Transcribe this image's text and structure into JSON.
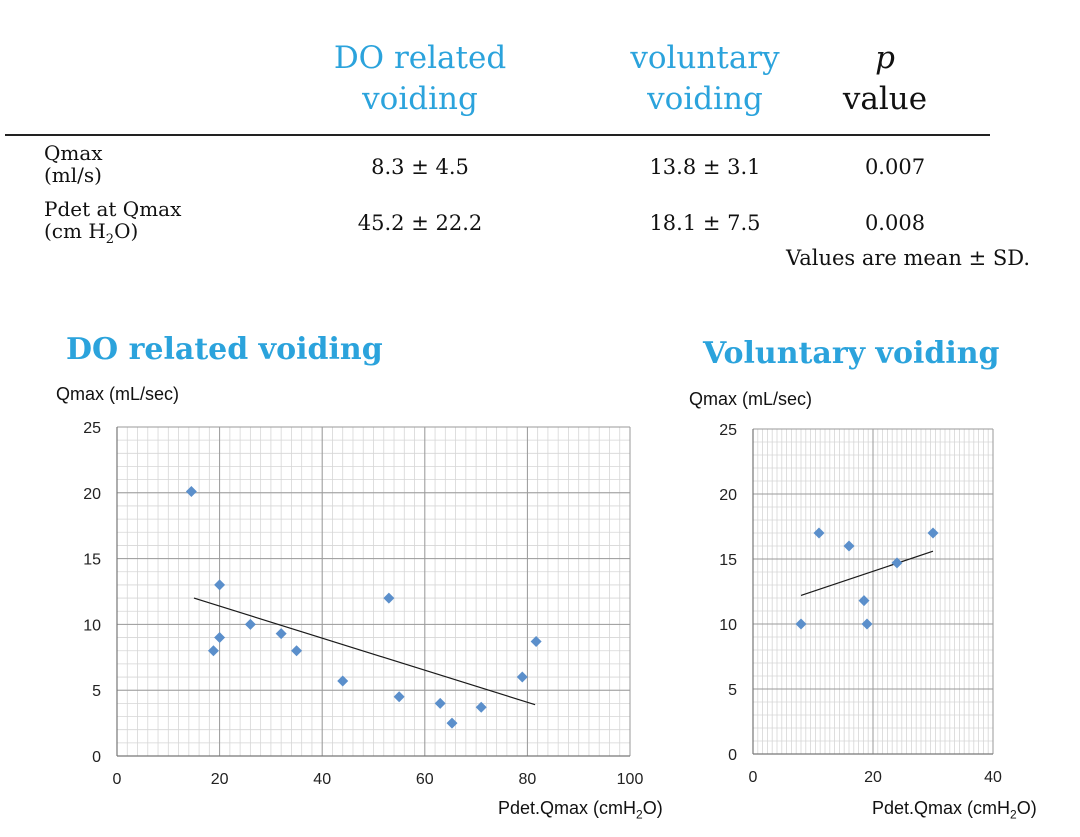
{
  "table": {
    "headers": {
      "do": [
        "DO related",
        "voiding"
      ],
      "vol": [
        "voluntary",
        "voiding"
      ],
      "p": [
        "p",
        "value"
      ]
    },
    "rows": [
      {
        "label": [
          "Qmax",
          "(ml/s)"
        ],
        "do": "8.3 ± 4.5",
        "vol": "13.8 ± 3.1",
        "p": "0.007"
      },
      {
        "label": [
          "Pdet at Qmax",
          "(cm H",
          "2",
          "O)"
        ],
        "do": "45.2 ± 22.2",
        "vol": "18.1 ± 7.5",
        "p": "0.008"
      }
    ],
    "footnote": "Values are mean ± SD."
  },
  "chart_data": [
    {
      "type": "scatter",
      "title": "DO related voiding",
      "ylabel": "Qmax (mL/sec)",
      "xlabel": [
        "Pdet.Qmax (cmH",
        "2",
        "O)"
      ],
      "xlim": [
        0,
        100
      ],
      "ylim": [
        0,
        25
      ],
      "xticks": [
        0,
        20,
        40,
        60,
        80,
        100
      ],
      "yticks": [
        0,
        5,
        10,
        15,
        20,
        25
      ],
      "grid": true,
      "marker_color": "#5B8FCB",
      "points": [
        [
          14.5,
          20.1
        ],
        [
          18.8,
          8.0
        ],
        [
          20,
          13.0
        ],
        [
          20,
          9.0
        ],
        [
          26,
          10.0
        ],
        [
          32,
          9.3
        ],
        [
          35,
          8.0
        ],
        [
          44,
          5.7
        ],
        [
          53,
          12.0
        ],
        [
          55,
          4.5
        ],
        [
          63,
          4.0
        ],
        [
          65.3,
          2.5
        ],
        [
          71,
          3.7
        ],
        [
          79,
          6.0
        ],
        [
          81.7,
          8.7
        ]
      ],
      "trendline": {
        "x": [
          15,
          81.5
        ],
        "y": [
          12.0,
          3.9
        ]
      }
    },
    {
      "type": "scatter",
      "title": "Voluntary voiding",
      "ylabel": "Qmax (mL/sec)",
      "xlabel": [
        "Pdet.Qmax (cmH",
        "2",
        "O)"
      ],
      "xlim": [
        0,
        40
      ],
      "ylim": [
        0,
        25
      ],
      "xticks": [
        0,
        20,
        40
      ],
      "yticks": [
        0,
        5,
        10,
        15,
        20,
        25
      ],
      "grid": true,
      "marker_color": "#5B8FCB",
      "points": [
        [
          8,
          10.0
        ],
        [
          11,
          17.0
        ],
        [
          16,
          16.0
        ],
        [
          18.5,
          11.8
        ],
        [
          19,
          10.0
        ],
        [
          24,
          14.7
        ],
        [
          30,
          17.0
        ]
      ],
      "trendline": {
        "x": [
          8,
          30
        ],
        "y": [
          12.2,
          15.6
        ]
      }
    }
  ]
}
